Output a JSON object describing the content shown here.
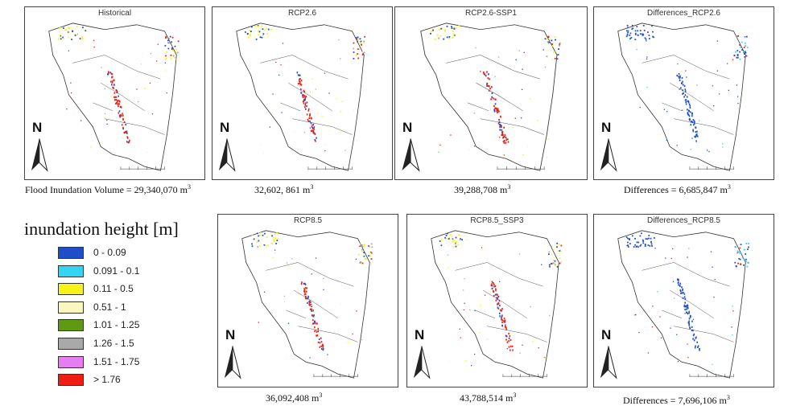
{
  "panels": [
    {
      "id": "historical",
      "title": "Historical",
      "volume_label": "Flood Inundation Volume = 29,340,070 m",
      "volume_sup": "3",
      "has_difference": false
    },
    {
      "id": "rcp26",
      "title": "RCP2.6",
      "volume_label": "32,602, 861 m",
      "volume_sup": "3",
      "has_difference": false
    },
    {
      "id": "rcp26_ssp1",
      "title": "RCP2.6-SSP1",
      "volume_label": "39,288,708 m",
      "volume_sup": "3",
      "has_difference": false
    },
    {
      "id": "diff_rcp26",
      "title": "Differences_RCP2.6",
      "volume_label": "Differences = 6,685,847 m",
      "volume_sup": "3",
      "has_difference": true
    },
    {
      "id": "rcp85",
      "title": "RCP8.5",
      "volume_label": "36,092,408 m",
      "volume_sup": "3",
      "has_difference": false
    },
    {
      "id": "rcp85_ssp3",
      "title": "RCP8.5_SSP3",
      "volume_label": "43,788,514 m",
      "volume_sup": "3",
      "has_difference": false
    },
    {
      "id": "diff_rcp85",
      "title": "Differences_RCP8.5",
      "volume_label": "Differences = 7,696,106 m",
      "volume_sup": "3",
      "has_difference": true
    }
  ],
  "north_label": "N",
  "legend": {
    "title": "inundation height [m]",
    "items": [
      {
        "label": "0 - 0.09",
        "color": "#1f4fc8"
      },
      {
        "label": "0.091 - 0.1",
        "color": "#33d6f2"
      },
      {
        "label": "0.11 - 0.5",
        "color": "#f7f218"
      },
      {
        "label": "0.51 - 1",
        "color": "#fbf7c0"
      },
      {
        "label": "1.01 - 1.25",
        "color": "#5e9b12"
      },
      {
        "label": "1.26 - 1.5",
        "color": "#a9a9a9"
      },
      {
        "label": "1.51 - 1.75",
        "color": "#e57ef0"
      },
      {
        "label": "> 1.76",
        "color": "#f01e12"
      }
    ]
  }
}
